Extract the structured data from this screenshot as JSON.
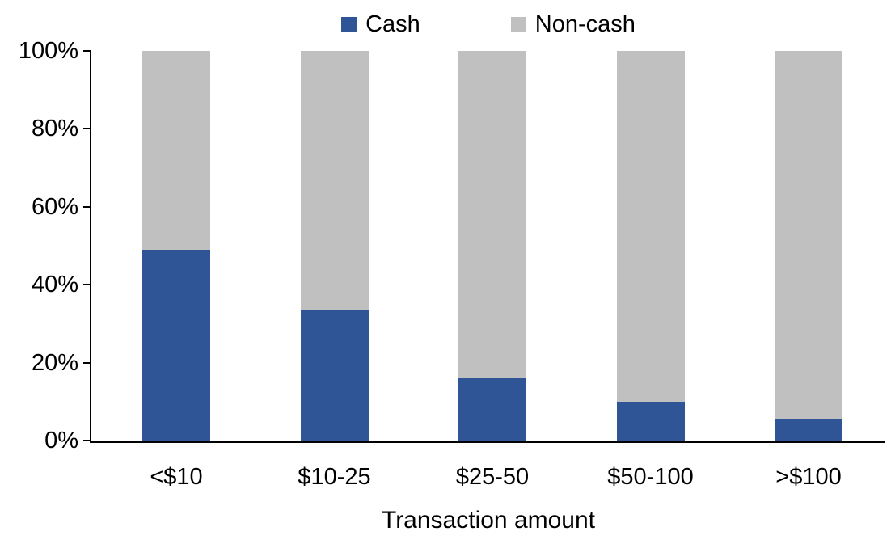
{
  "chart_data": {
    "type": "bar",
    "variant": "100-percent-stacked-column",
    "title": "",
    "xlabel": "Transaction amount",
    "ylabel": "",
    "categories": [
      "<$10",
      "$10-25",
      "$25-50",
      "$50-100",
      ">$100"
    ],
    "series": [
      {
        "name": "Cash",
        "color": "#2F5597",
        "values": [
          49,
          33.5,
          16,
          10,
          5.5
        ]
      },
      {
        "name": "Non-cash",
        "color": "#C0C0C0",
        "values": [
          51,
          66.5,
          84,
          90,
          94.5
        ]
      }
    ],
    "ylim": [
      0,
      100
    ],
    "ytick_labels": [
      "100%",
      "80%",
      "60%",
      "40%",
      "20%",
      "0%"
    ],
    "grid": false,
    "legend_position": "top-center"
  },
  "colors": {
    "cash": "#2F5597",
    "noncash": "#C0C0C0",
    "axis": "#000000",
    "background": "#FFFFFF"
  }
}
